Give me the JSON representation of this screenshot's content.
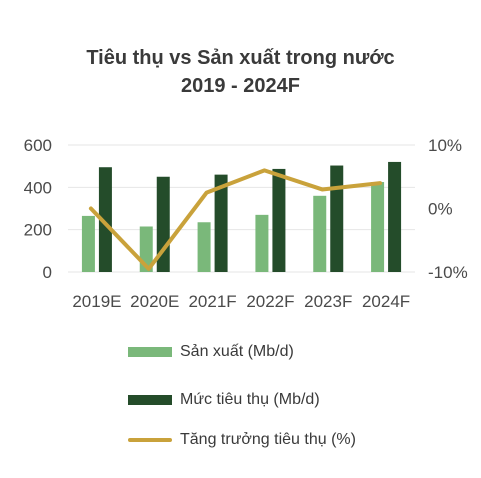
{
  "chart_data": {
    "type": "bar",
    "title": [
      "Tiêu thụ vs Sản xuất trong nước",
      "2019 - 2024F"
    ],
    "categories": [
      "2019E",
      "2020E",
      "2021F",
      "2022F",
      "2023F",
      "2024F"
    ],
    "y_left": {
      "ticks": [
        "600",
        "400",
        "200",
        "0"
      ],
      "range": [
        0,
        600
      ]
    },
    "y_right": {
      "ticks": [
        "10%",
        "0%",
        "-10%"
      ],
      "range": [
        -10,
        10
      ]
    },
    "series": [
      {
        "name": "Sản xuất (Mb/d)",
        "type": "bar",
        "color": "#7ab87a",
        "values": [
          265,
          215,
          235,
          270,
          360,
          425
        ]
      },
      {
        "name": "Mức tiêu thụ (Mb/d)",
        "type": "bar",
        "color": "#244c2a",
        "values": [
          495,
          450,
          460,
          487,
          503,
          520
        ]
      },
      {
        "name": "Tăng trưởng tiêu thụ (%)",
        "type": "line",
        "axis": "right",
        "color": "#c9a23b",
        "values": [
          0,
          -9.5,
          2.5,
          6,
          3,
          4
        ]
      }
    ],
    "legend": "bottom"
  }
}
